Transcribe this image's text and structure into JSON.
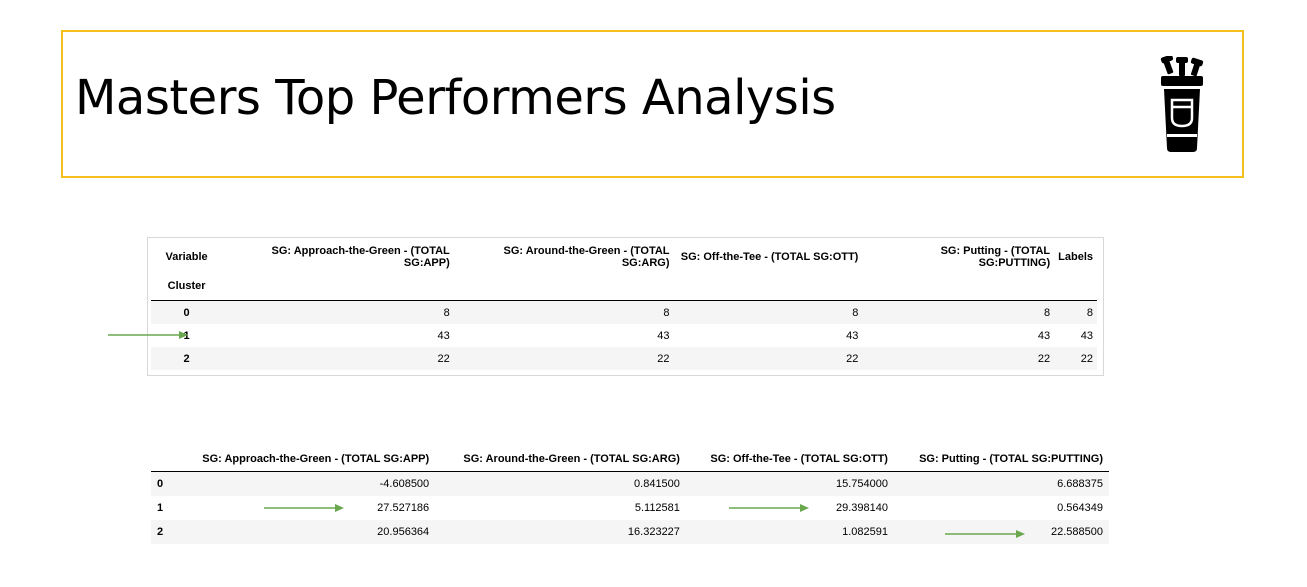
{
  "title": "Masters Top Performers Analysis",
  "icon": "golf-bag-icon",
  "accent_color": "#F4C01E",
  "arrow_color": "#6AA84F",
  "table1": {
    "corner_label": "Variable",
    "index_label": "Cluster",
    "columns": [
      "SG: Approach-the-Green - (TOTAL SG:APP)",
      "SG: Around-the-Green - (TOTAL SG:ARG)",
      "SG: Off-the-Tee - (TOTAL SG:OTT)",
      "SG: Putting - (TOTAL SG:PUTTING)",
      "Labels"
    ],
    "rows": [
      {
        "index": "0",
        "values": [
          "8",
          "8",
          "8",
          "8",
          "8"
        ]
      },
      {
        "index": "1",
        "values": [
          "43",
          "43",
          "43",
          "43",
          "43"
        ]
      },
      {
        "index": "2",
        "values": [
          "22",
          "22",
          "22",
          "22",
          "22"
        ]
      }
    ]
  },
  "table2": {
    "columns": [
      "SG: Approach-the-Green - (TOTAL SG:APP)",
      "SG: Around-the-Green - (TOTAL SG:ARG)",
      "SG: Off-the-Tee - (TOTAL SG:OTT)",
      "SG: Putting - (TOTAL SG:PUTTING)"
    ],
    "rows": [
      {
        "index": "0",
        "values": [
          "-4.608500",
          "0.841500",
          "15.754000",
          "6.688375"
        ]
      },
      {
        "index": "1",
        "values": [
          "27.527186",
          "5.112581",
          "29.398140",
          "0.564349"
        ]
      },
      {
        "index": "2",
        "values": [
          "20.956364",
          "16.323227",
          "1.082591",
          "22.588500"
        ]
      }
    ]
  }
}
